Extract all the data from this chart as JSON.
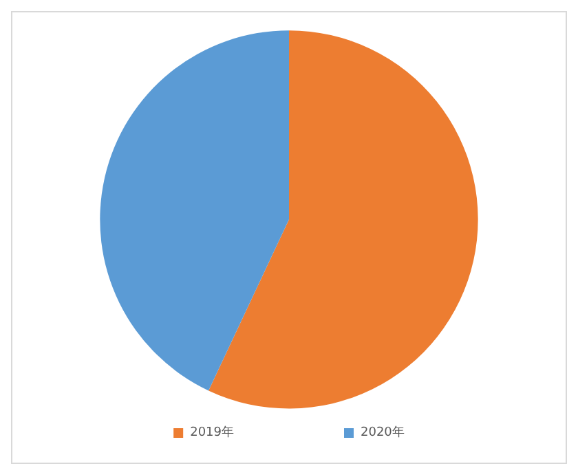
{
  "chart_data": {
    "type": "pie",
    "categories": [
      "2019年",
      "2020年"
    ],
    "values": [
      57,
      43
    ],
    "colors": [
      "#ed7d31",
      "#5b9bd5"
    ],
    "legend": "bottom"
  }
}
